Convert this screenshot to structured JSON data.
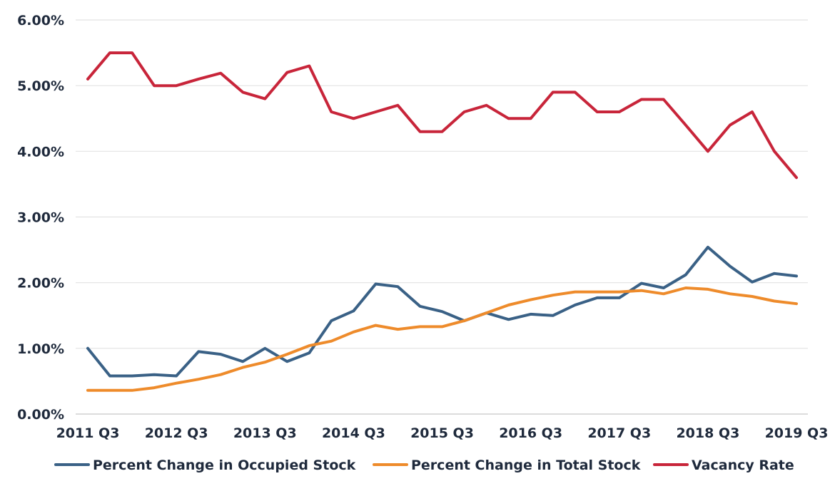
{
  "chart_data": {
    "type": "line",
    "title": "",
    "xlabel": "",
    "ylabel": "",
    "x": [
      "2011 Q3",
      "2011 Q4",
      "2012 Q1",
      "2012 Q2",
      "2012 Q3",
      "2012 Q4",
      "2013 Q1",
      "2013 Q2",
      "2013 Q3",
      "2013 Q4",
      "2014 Q1",
      "2014 Q2",
      "2014 Q3",
      "2014 Q4",
      "2015 Q1",
      "2015 Q2",
      "2015 Q3",
      "2015 Q4",
      "2016 Q1",
      "2016 Q2",
      "2016 Q3",
      "2016 Q4",
      "2017 Q1",
      "2017 Q2",
      "2017 Q3",
      "2017 Q4",
      "2018 Q1",
      "2018 Q2",
      "2018 Q3",
      "2018 Q4",
      "2019 Q1",
      "2019 Q2",
      "2019 Q3"
    ],
    "x_tick_labels": [
      "2011 Q3",
      "2012 Q3",
      "2013 Q3",
      "2014 Q3",
      "2015 Q3",
      "2016 Q3",
      "2017 Q3",
      "2018 Q3",
      "2019 Q3"
    ],
    "ylim": [
      0,
      6
    ],
    "y_tick_labels": [
      "0.00%",
      "1.00%",
      "2.00%",
      "3.00%",
      "4.00%",
      "5.00%",
      "6.00%"
    ],
    "grid": true,
    "legend_position": "bottom",
    "series": [
      {
        "name": "Percent Change in Occupied Stock",
        "color": "#3a6186",
        "values": [
          1.0,
          0.58,
          0.58,
          0.6,
          0.58,
          0.95,
          0.91,
          0.8,
          1.0,
          0.8,
          0.93,
          1.42,
          1.57,
          1.98,
          1.94,
          1.64,
          1.56,
          1.42,
          1.54,
          1.44,
          1.52,
          1.5,
          1.66,
          1.77,
          1.77,
          1.99,
          1.92,
          2.12,
          2.54,
          2.25,
          2.01,
          2.14,
          2.1
        ]
      },
      {
        "name": "Percent Change in Total Stock",
        "color": "#ee8b2b",
        "values": [
          0.36,
          0.36,
          0.36,
          0.4,
          0.47,
          0.53,
          0.6,
          0.71,
          0.79,
          0.91,
          1.04,
          1.11,
          1.25,
          1.35,
          1.29,
          1.33,
          1.33,
          1.42,
          1.54,
          1.66,
          1.74,
          1.81,
          1.86,
          1.86,
          1.86,
          1.88,
          1.83,
          1.92,
          1.9,
          1.83,
          1.79,
          1.72,
          1.68
        ]
      },
      {
        "name": "Vacancy Rate",
        "color": "#c8253a",
        "values": [
          5.1,
          5.5,
          5.5,
          5.0,
          5.0,
          5.1,
          5.19,
          4.9,
          4.8,
          5.2,
          5.3,
          4.6,
          4.5,
          4.6,
          4.7,
          4.3,
          4.3,
          4.6,
          4.7,
          4.5,
          4.5,
          4.9,
          4.9,
          4.6,
          4.6,
          4.79,
          4.79,
          4.4,
          4.0,
          4.4,
          4.6,
          4.0,
          3.6
        ]
      }
    ]
  }
}
